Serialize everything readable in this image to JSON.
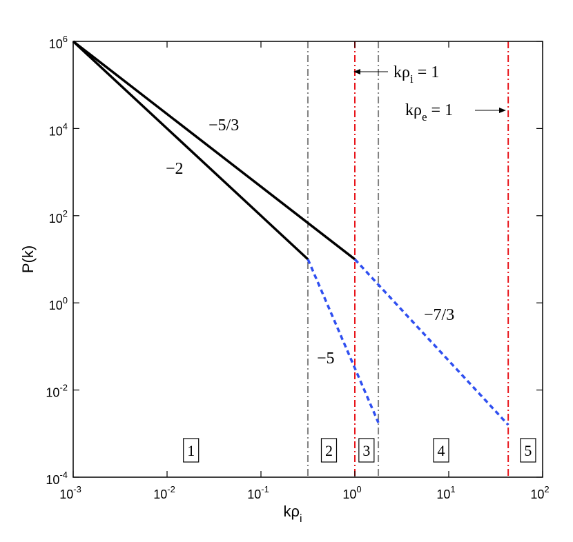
{
  "chart_data": {
    "type": "line",
    "xlabel": "kρ",
    "xlabel_sub": "i",
    "ylabel": "P(k)",
    "xscale": "log",
    "yscale": "log",
    "xlim": [
      0.001,
      100
    ],
    "ylim": [
      0.0001,
      1000000
    ],
    "x_ticks": [
      {
        "base": "10",
        "exp": "-3"
      },
      {
        "base": "10",
        "exp": "-2"
      },
      {
        "base": "10",
        "exp": "-1"
      },
      {
        "base": "10",
        "exp": "0"
      },
      {
        "base": "10",
        "exp": "1"
      },
      {
        "base": "10",
        "exp": "2"
      }
    ],
    "y_ticks": [
      {
        "base": "10",
        "exp": "-4"
      },
      {
        "base": "10",
        "exp": "-2"
      },
      {
        "base": "10",
        "exp": "0"
      },
      {
        "base": "10",
        "exp": "2"
      },
      {
        "base": "10",
        "exp": "4"
      },
      {
        "base": "10",
        "exp": "6"
      }
    ],
    "grid": false,
    "series": [
      {
        "x": [
          0.001,
          0.316
        ],
        "y": [
          1000000,
          10
        ],
        "color": "#000000",
        "style": "solid",
        "label": "−2"
      },
      {
        "x": [
          0.316,
          1.78
        ],
        "y": [
          10,
          0.00178
        ],
        "color": "#2f4ff0",
        "style": "dashed",
        "label": "−5"
      },
      {
        "x": [
          0.001,
          1.0
        ],
        "y": [
          1000000,
          10
        ],
        "color": "#000000",
        "style": "solid",
        "label": "−5/3"
      },
      {
        "x": [
          1.0,
          43
        ],
        "y": [
          10,
          0.00158
        ],
        "color": "#2f4ff0",
        "style": "dashed",
        "label": "−7/3"
      }
    ],
    "vlines": [
      {
        "x": 0.316,
        "color": "#808080",
        "style": "dashdot"
      },
      {
        "x": 1.0,
        "color": "#e8151b",
        "style": "dashdot"
      },
      {
        "x": 1.78,
        "color": "#808080",
        "style": "dashdot"
      },
      {
        "x": 43,
        "color": "#e8151b",
        "style": "dashdot"
      }
    ],
    "annotations": {
      "kpi": {
        "text": "kρ",
        "sub": "i",
        "rest": " = 1"
      },
      "kpe": {
        "text": "kρ",
        "sub": "e",
        "rest": " = 1"
      }
    },
    "regions": [
      {
        "label": "1",
        "x": 0.018
      },
      {
        "label": "2",
        "x": 0.53
      },
      {
        "label": "3",
        "x": 1.33
      },
      {
        "label": "4",
        "x": 8.3
      },
      {
        "label": "5",
        "x": 70
      }
    ]
  }
}
